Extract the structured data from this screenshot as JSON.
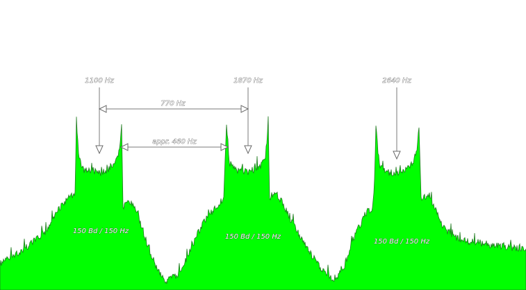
{
  "chart_data": {
    "type": "area",
    "title": "",
    "xlabel": "",
    "ylabel": "",
    "grid": false,
    "legend": "none",
    "fill_color": "#00ff00",
    "edge_color": "#1e7a1e",
    "channels": [
      {
        "center_label": "1100 Hz",
        "bandwidth_label": "150 Bd / 150 Hz"
      },
      {
        "center_label": "1870 Hz",
        "bandwidth_label": "150 Bd / 150 Hz"
      },
      {
        "center_label": "2640 Hz",
        "bandwidth_label": "150 Bd / 150 Hz"
      }
    ],
    "spacing_annotations": [
      {
        "label": "770 Hz"
      },
      {
        "label": "appr. 460 Hz"
      }
    ]
  }
}
